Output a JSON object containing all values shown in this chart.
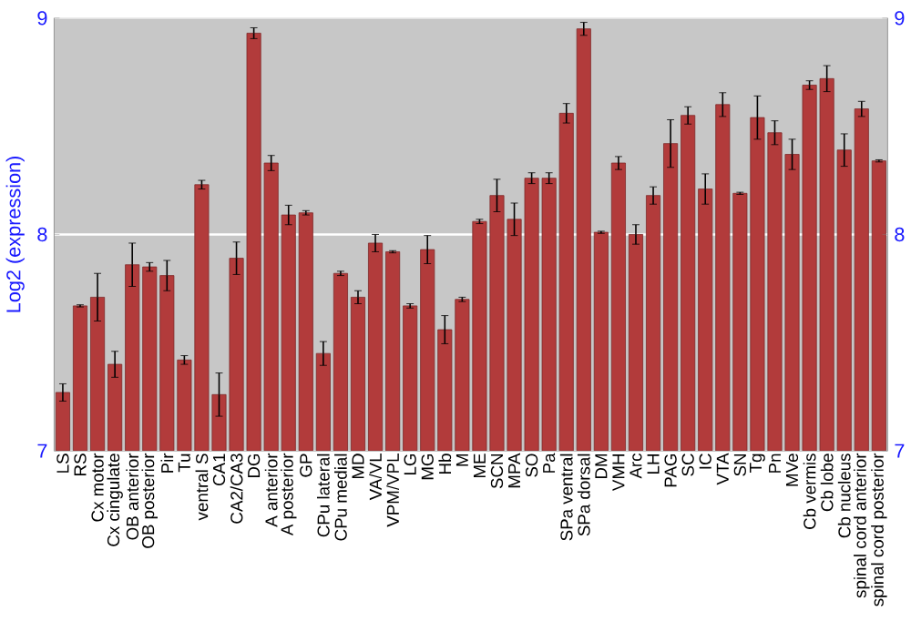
{
  "chart_data": {
    "type": "bar",
    "ylabel": "Log2 (expression)",
    "categories": [
      "LS",
      "RS",
      "Cx motor",
      "Cx cingulate",
      "OB anterior",
      "OB posterior",
      "Pir",
      "Tu",
      "ventral S",
      "CA1",
      "CA2/CA3",
      "DG",
      "A anterior",
      "A posterior",
      "GP",
      "CPu lateral",
      "CPu medial",
      "MD",
      "VA/VL",
      "VPM/VPL",
      "LG",
      "MG",
      "Hb",
      "M",
      "ME",
      "SCN",
      "MPA",
      "SO",
      "Pa",
      "SPa ventral",
      "SPa dorsal",
      "DM",
      "VMH",
      "Arc",
      "LH",
      "PAG",
      "SC",
      "IC",
      "VTA",
      "SN",
      "Tg",
      "Pn",
      "MVe",
      "Cb vermis",
      "Cb lobe",
      "Cb nucleus",
      "spinal cord anterior",
      "spinal cord posterior"
    ],
    "values": [
      7.27,
      7.67,
      7.71,
      7.4,
      7.86,
      7.85,
      7.81,
      7.42,
      8.23,
      7.26,
      7.89,
      8.93,
      8.33,
      8.09,
      8.1,
      7.45,
      7.82,
      7.71,
      7.96,
      7.92,
      7.67,
      7.93,
      7.56,
      7.7,
      8.06,
      8.18,
      8.07,
      8.26,
      8.26,
      8.56,
      8.95,
      8.01,
      8.33,
      8.0,
      8.18,
      8.42,
      8.55,
      8.21,
      8.6,
      8.19,
      8.54,
      8.47,
      8.37,
      8.69,
      8.72,
      8.39,
      8.58,
      8.34
    ],
    "errors": [
      0.04,
      0.005,
      0.11,
      0.06,
      0.1,
      0.02,
      0.07,
      0.02,
      0.02,
      0.1,
      0.075,
      0.025,
      0.035,
      0.045,
      0.01,
      0.055,
      0.01,
      0.03,
      0.04,
      0.005,
      0.01,
      0.065,
      0.065,
      0.01,
      0.01,
      0.075,
      0.075,
      0.025,
      0.025,
      0.045,
      0.03,
      0.005,
      0.03,
      0.045,
      0.04,
      0.11,
      0.04,
      0.07,
      0.055,
      0.005,
      0.1,
      0.055,
      0.07,
      0.02,
      0.06,
      0.075,
      0.035,
      0.005
    ],
    "color": "#b23b3b",
    "ylim": [
      7,
      9
    ],
    "yticks": [
      7,
      8,
      9
    ],
    "y2lim": [
      7,
      9
    ],
    "y2ticks": [
      7,
      8,
      9
    ],
    "grid": true
  }
}
